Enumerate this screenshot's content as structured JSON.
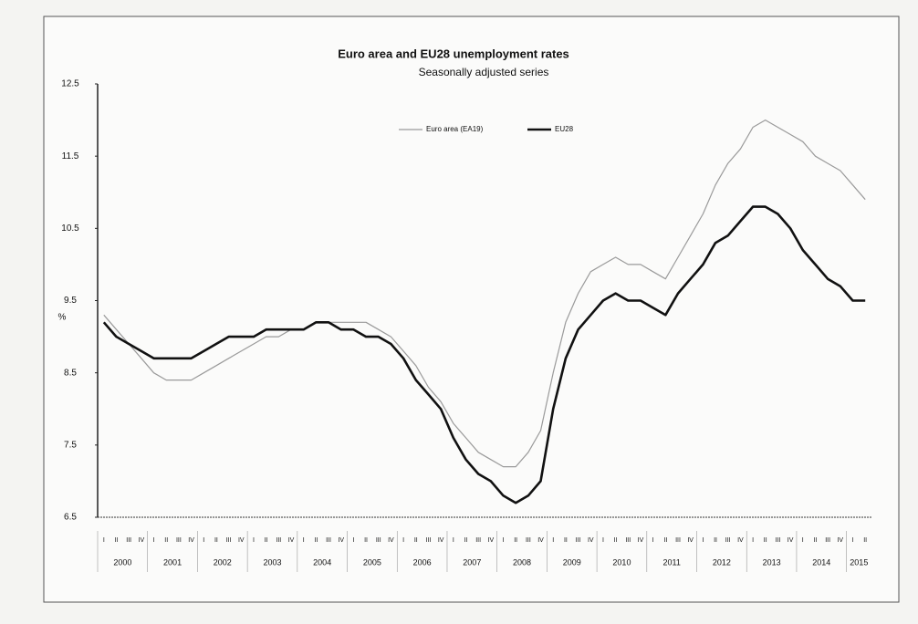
{
  "chart_data": {
    "type": "line",
    "title": "Euro area and EU28 unemployment rates",
    "subtitle": "Seasonally adjusted series",
    "ylabel": "%",
    "ylim": [
      6.5,
      12.5
    ],
    "yticks": [
      6.5,
      7.5,
      8.5,
      9.5,
      10.5,
      11.5,
      12.5
    ],
    "categories": [
      "I",
      "II",
      "III",
      "IV",
      "I",
      "II",
      "III",
      "IV",
      "I",
      "II",
      "III",
      "IV",
      "I",
      "II",
      "III",
      "IV",
      "I",
      "II",
      "III",
      "IV",
      "I",
      "II",
      "III",
      "IV",
      "I",
      "II",
      "III",
      "IV",
      "I",
      "II",
      "III",
      "IV",
      "I",
      "II",
      "III",
      "IV",
      "I",
      "II",
      "III",
      "IV",
      "I",
      "II",
      "III",
      "IV",
      "I",
      "II",
      "III",
      "IV",
      "I",
      "II",
      "III",
      "IV",
      "I",
      "II",
      "III",
      "IV",
      "I",
      "II",
      "III",
      "IV",
      "I",
      "II"
    ],
    "year_labels": [
      "2000",
      "2001",
      "2002",
      "2003",
      "2004",
      "2005",
      "2006",
      "2007",
      "2008",
      "2009",
      "2010",
      "2011",
      "2012",
      "2013",
      "2014",
      "2015"
    ],
    "series": [
      {
        "name": "Euro area (EA19)",
        "color": "#9a9a9a",
        "values": [
          9.3,
          9.1,
          8.9,
          8.7,
          8.5,
          8.4,
          8.4,
          8.4,
          8.5,
          8.6,
          8.7,
          8.8,
          8.9,
          9.0,
          9.0,
          9.1,
          9.1,
          9.2,
          9.2,
          9.2,
          9.2,
          9.2,
          9.1,
          9.0,
          8.8,
          8.6,
          8.3,
          8.1,
          7.8,
          7.6,
          7.4,
          7.3,
          7.2,
          7.2,
          7.4,
          7.7,
          8.5,
          9.2,
          9.6,
          9.9,
          10.0,
          10.1,
          10.0,
          10.0,
          9.9,
          9.8,
          10.1,
          10.4,
          10.7,
          11.1,
          11.4,
          11.6,
          11.9,
          12.0,
          11.9,
          11.8,
          11.7,
          11.5,
          11.4,
          11.3,
          11.1,
          10.9
        ]
      },
      {
        "name": "EU28",
        "color": "#111111",
        "values": [
          9.2,
          9.0,
          8.9,
          8.8,
          8.7,
          8.7,
          8.7,
          8.7,
          8.8,
          8.9,
          9.0,
          9.0,
          9.0,
          9.1,
          9.1,
          9.1,
          9.1,
          9.2,
          9.2,
          9.1,
          9.1,
          9.0,
          9.0,
          8.9,
          8.7,
          8.4,
          8.2,
          8.0,
          7.6,
          7.3,
          7.1,
          7.0,
          6.8,
          6.7,
          6.8,
          7.0,
          8.0,
          8.7,
          9.1,
          9.3,
          9.5,
          9.6,
          9.5,
          9.5,
          9.4,
          9.3,
          9.6,
          9.8,
          10.0,
          10.3,
          10.4,
          10.6,
          10.8,
          10.8,
          10.7,
          10.5,
          10.2,
          10.0,
          9.8,
          9.7,
          9.5,
          9.5
        ]
      }
    ]
  }
}
